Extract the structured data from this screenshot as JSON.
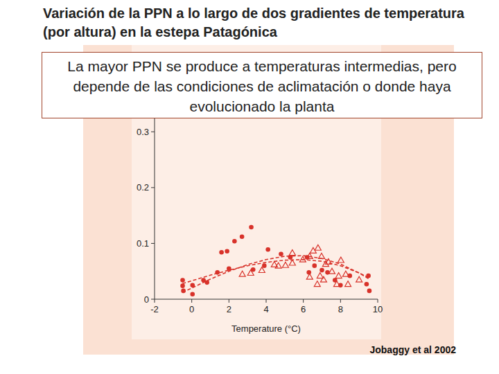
{
  "chart_data": {
    "type": "scatter",
    "title": "Variación de la PPN a lo largo de dos gradientes de temperatura (por altura) en la estepa Patagónica",
    "annotation": "La mayor PPN se produce a temperaturas intermedias, pero depende de las condiciones de aclimatación o donde haya evolucionado la planta",
    "source": "Jobaggy et al 2002",
    "x_label": "Temperature (°C)",
    "xlim": [
      -2,
      10
    ],
    "xticks": [
      -2,
      0,
      2,
      4,
      6,
      8,
      10
    ],
    "ylim": [
      0,
      0.35
    ],
    "yticks": [
      0,
      0.1,
      0.2,
      0.3
    ],
    "series": [
      {
        "type": "scatter",
        "marker": "circle",
        "color": "#d8322a",
        "x": [
          -0.49,
          -0.49,
          -0.45,
          0.04,
          0.04,
          0.63,
          0.82,
          1.38,
          1.6,
          1.9,
          2.0,
          2.3,
          2.7,
          3.2,
          3.3,
          3.9,
          4.1,
          4.8,
          5.3,
          6.2,
          6.3,
          6.6,
          7.0,
          7.3,
          7.7,
          8.0,
          8.5,
          9.4,
          9.5,
          9.55
        ],
        "values": [
          0.034,
          0.024,
          0.015,
          0.009,
          0.025,
          0.034,
          0.03,
          0.048,
          0.084,
          0.086,
          0.055,
          0.104,
          0.112,
          0.129,
          0.053,
          0.06,
          0.089,
          0.081,
          0.075,
          0.075,
          0.048,
          0.06,
          0.052,
          0.048,
          0.034,
          0.025,
          0.042,
          0.027,
          0.042,
          0.015
        ]
      },
      {
        "type": "scatter",
        "marker": "triangle",
        "color": "#d8322a",
        "x": [
          2.72,
          3.17,
          3.77,
          4.44,
          4.66,
          5.04,
          5.41,
          5.97,
          6.34,
          6.53,
          6.79,
          6.98,
          7.2,
          6.9,
          7.09,
          7.35,
          7.54,
          7.8,
          8.02,
          7.9,
          8.28,
          8.4,
          6.75,
          6.34,
          9.0,
          5.41
        ],
        "values": [
          0.045,
          0.047,
          0.052,
          0.062,
          0.06,
          0.061,
          0.065,
          0.071,
          0.077,
          0.087,
          0.092,
          0.077,
          0.063,
          0.042,
          0.035,
          0.067,
          0.05,
          0.027,
          0.07,
          0.042,
          0.045,
          0.027,
          0.027,
          0.04,
          0.035,
          0.083
        ]
      },
      {
        "type": "line",
        "line_style": "dashed",
        "color": "#d8322a",
        "x": [
          -0.5,
          0,
          1,
          2,
          3,
          4,
          5,
          6,
          7,
          8,
          9,
          9.5
        ],
        "values": [
          0.012,
          0.02,
          0.036,
          0.05,
          0.062,
          0.071,
          0.077,
          0.078,
          0.073,
          0.063,
          0.047,
          0.037
        ]
      },
      {
        "type": "line",
        "line_style": "dashed",
        "color": "#d8322a",
        "x": [
          -0.5,
          0,
          1,
          2,
          3,
          4,
          5,
          6,
          7,
          8,
          9,
          9.5
        ],
        "values": [
          0.028,
          0.033,
          0.043,
          0.052,
          0.06,
          0.066,
          0.07,
          0.071,
          0.068,
          0.06,
          0.047,
          0.039
        ]
      }
    ]
  }
}
